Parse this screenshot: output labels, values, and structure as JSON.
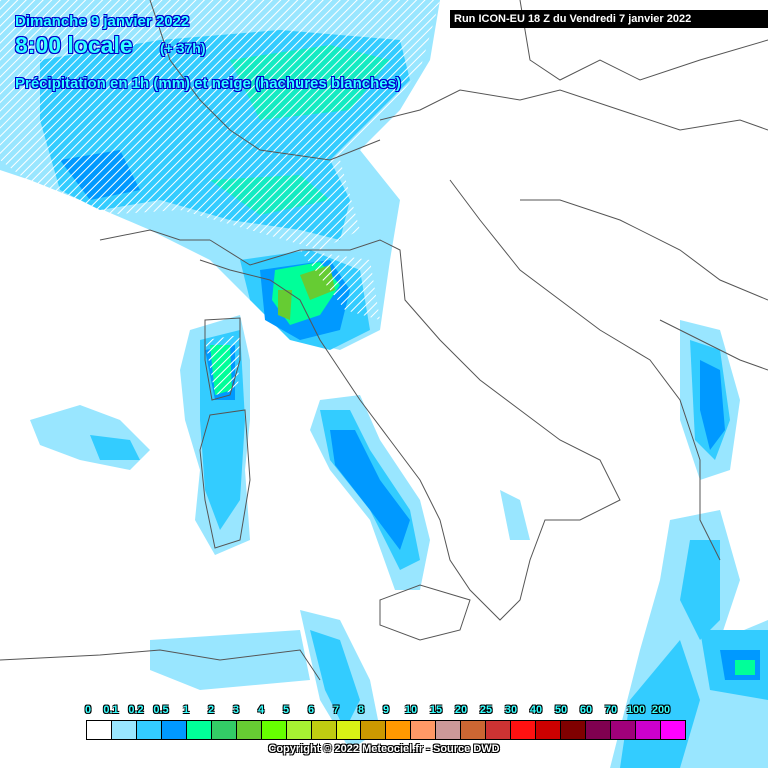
{
  "header": {
    "date": "Dimanche 9 janvier 2022",
    "time": "8:00 locale",
    "lead": "(+ 37h)",
    "parameter": "Précipitation en 1h (mm) et neige (hachures blanches)",
    "run": "Run ICON-EU 18 Z du Vendredi 7 janvier 2022"
  },
  "legend": {
    "labels": [
      "0",
      "0.1",
      "0.2",
      "0.5",
      "1",
      "2",
      "3",
      "4",
      "5",
      "6",
      "7",
      "8",
      "9",
      "10",
      "15",
      "20",
      "25",
      "30",
      "40",
      "50",
      "60",
      "70",
      "100",
      "200"
    ],
    "colors": [
      "#ffffff",
      "#99e6ff",
      "#33ccff",
      "#0099ff",
      "#00ff99",
      "#33cc66",
      "#66cc33",
      "#66ff00",
      "#a6f232",
      "#bfcc11",
      "#d9f215",
      "#cc9900",
      "#ff9900",
      "#ff9966",
      "#cc9999",
      "#cc6633",
      "#cc3333",
      "#ff1111",
      "#cc0000",
      "#800000",
      "#800050",
      "#a0007a",
      "#cc00cc",
      "#ff00ff"
    ]
  },
  "footer": {
    "copyright": "Copyright © 2022 Meteociel.fr - Source DWD"
  }
}
